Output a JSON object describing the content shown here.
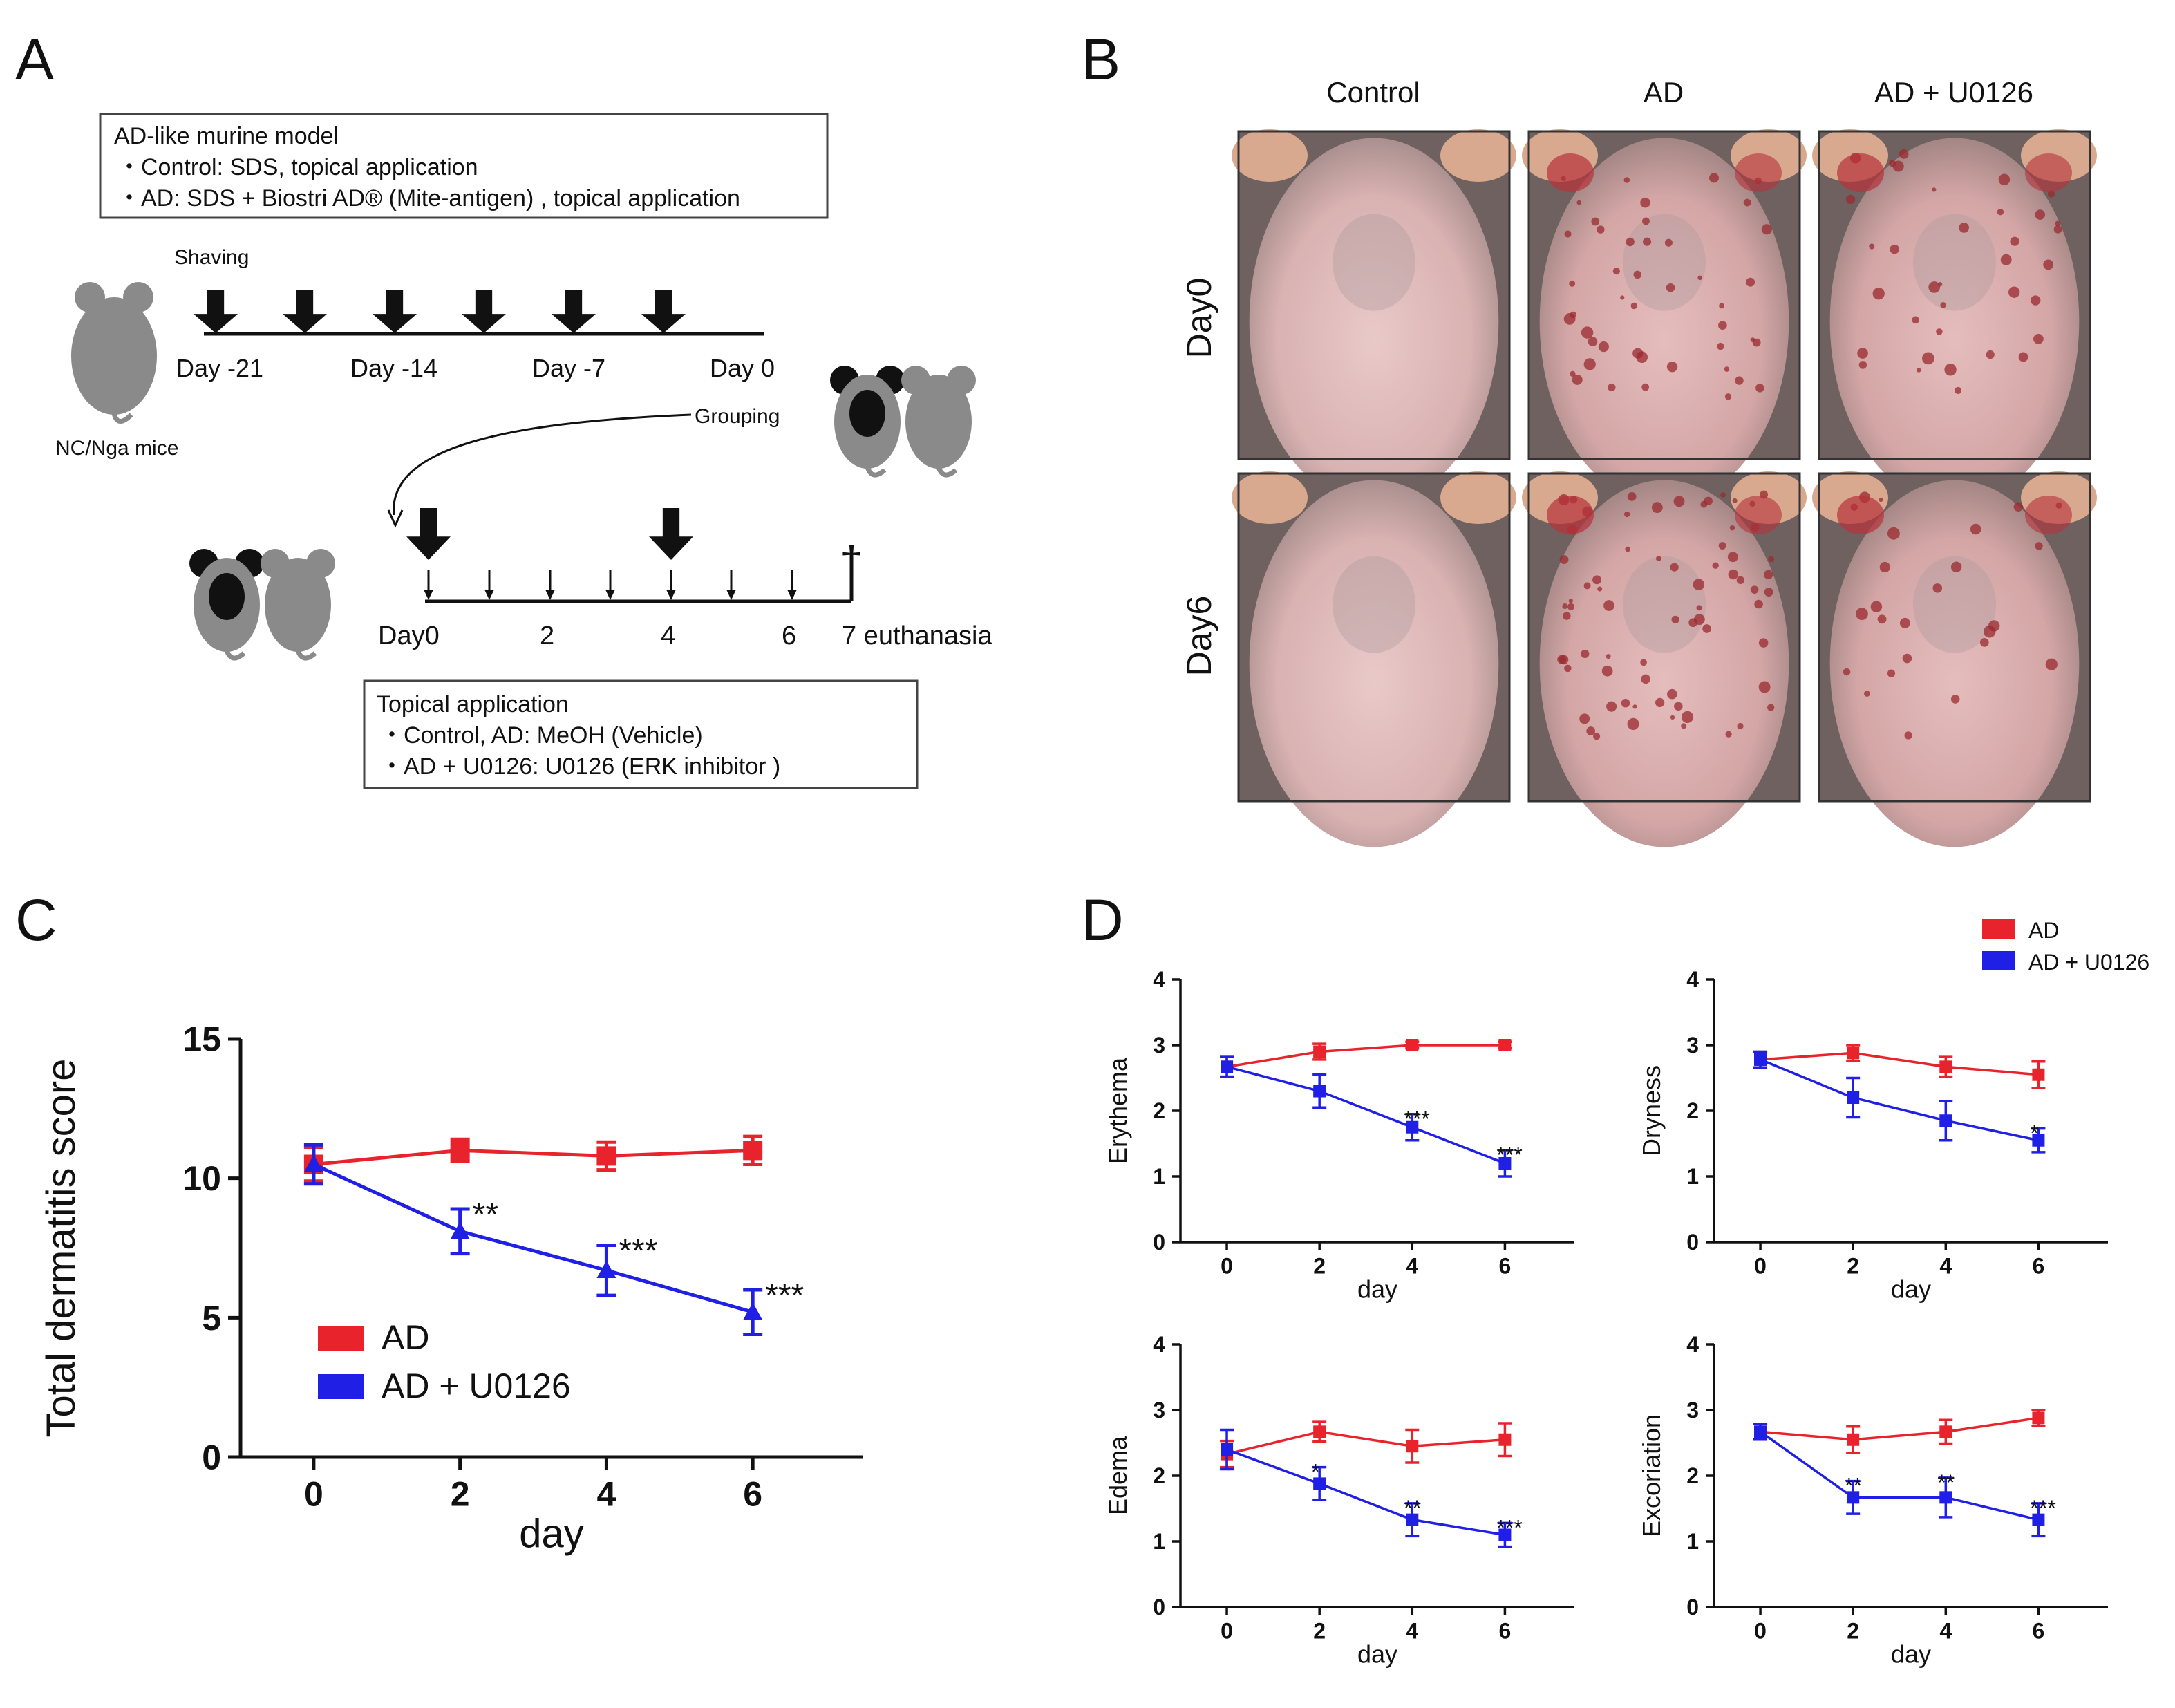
{
  "panels": {
    "A": "A",
    "B": "B",
    "C": "C",
    "D": "D"
  },
  "panelA": {
    "model_box": {
      "title": "AD-like murine model",
      "line1": "・Control: SDS, topical application",
      "line2": "・AD: SDS + Biostri AD® (Mite-antigen) , topical application"
    },
    "shaving_label": "Shaving",
    "timeline1_labels": [
      "Day -21",
      "Day -14",
      "Day -7",
      "Day 0"
    ],
    "mouse_label": "NC/Nga mice",
    "grouping_label": "Grouping",
    "timeline2_labels": [
      "Day0",
      "2",
      "4",
      "6",
      "7 euthanasia"
    ],
    "cross_symbol": "†",
    "application_box": {
      "title": "Topical application",
      "line1": "・Control, AD: MeOH (Vehicle)",
      "line2": "・AD + U0126: U0126 (ERK inhibitor )"
    }
  },
  "panelB": {
    "columns": [
      "Control",
      "AD",
      "AD + U0126"
    ],
    "rows": [
      "Day0",
      "Day6"
    ]
  },
  "colors": {
    "ad": "#e8232b",
    "u0126": "#1f1fe6",
    "axis": "#111111"
  },
  "chart_data": [
    {
      "id": "C",
      "type": "line",
      "title": "",
      "xlabel": "day",
      "ylabel": "Total dermatitis score",
      "x": [
        0,
        2,
        4,
        6
      ],
      "xticks": [
        "0",
        "2",
        "4",
        "6"
      ],
      "yticks": [
        "0",
        "5",
        "10",
        "15"
      ],
      "ylim": [
        0,
        15
      ],
      "legend": {
        "placement": "bottom-left",
        "entries": [
          "AD",
          "AD + U0126"
        ]
      },
      "series": [
        {
          "name": "AD",
          "color": "#e8232b",
          "marker": "square",
          "values": [
            10.5,
            11.0,
            10.8,
            11.0
          ],
          "err": [
            0.6,
            0.4,
            0.5,
            0.5
          ]
        },
        {
          "name": "AD + U0126",
          "color": "#1f1fe6",
          "marker": "triangle",
          "values": [
            10.5,
            8.1,
            6.7,
            5.2
          ],
          "err": [
            0.7,
            0.8,
            0.9,
            0.8
          ]
        }
      ],
      "annotations": [
        {
          "x": 2,
          "text": "**"
        },
        {
          "x": 4,
          "text": "***"
        },
        {
          "x": 6,
          "text": "***"
        }
      ]
    },
    {
      "id": "D-erythema",
      "type": "line",
      "xlabel": "day",
      "ylabel": "Erythema",
      "x": [
        0,
        2,
        4,
        6
      ],
      "xticks": [
        "0",
        "2",
        "4",
        "6"
      ],
      "yticks": [
        "0",
        "1",
        "2",
        "3",
        "4"
      ],
      "ylim": [
        0,
        4
      ],
      "series": [
        {
          "name": "AD",
          "color": "#e8232b",
          "values": [
            2.67,
            2.9,
            3.0,
            3.0
          ],
          "err": [
            0.15,
            0.12,
            0.05,
            0.05
          ]
        },
        {
          "name": "AD + U0126",
          "color": "#1f1fe6",
          "values": [
            2.67,
            2.3,
            1.75,
            1.2
          ],
          "err": [
            0.15,
            0.25,
            0.2,
            0.2
          ]
        }
      ],
      "annotations": [
        {
          "x": 4,
          "text": "***"
        },
        {
          "x": 6,
          "text": "***"
        }
      ]
    },
    {
      "id": "D-dryness",
      "type": "line",
      "xlabel": "day",
      "ylabel": "Dryness",
      "x": [
        0,
        2,
        4,
        6
      ],
      "xticks": [
        "0",
        "2",
        "4",
        "6"
      ],
      "yticks": [
        "0",
        "1",
        "2",
        "3",
        "4"
      ],
      "ylim": [
        0,
        4
      ],
      "series": [
        {
          "name": "AD",
          "color": "#e8232b",
          "values": [
            2.78,
            2.88,
            2.67,
            2.55
          ],
          "err": [
            0.12,
            0.12,
            0.15,
            0.2
          ]
        },
        {
          "name": "AD + U0126",
          "color": "#1f1fe6",
          "values": [
            2.78,
            2.2,
            1.85,
            1.55
          ],
          "err": [
            0.12,
            0.3,
            0.3,
            0.18
          ]
        }
      ],
      "annotations": [
        {
          "x": 6,
          "text": "*"
        }
      ]
    },
    {
      "id": "D-edema",
      "type": "line",
      "xlabel": "day",
      "ylabel": "Edema",
      "x": [
        0,
        2,
        4,
        6
      ],
      "xticks": [
        "0",
        "2",
        "4",
        "6"
      ],
      "yticks": [
        "0",
        "1",
        "2",
        "3",
        "4"
      ],
      "ylim": [
        0,
        4
      ],
      "series": [
        {
          "name": "AD",
          "color": "#e8232b",
          "values": [
            2.33,
            2.67,
            2.45,
            2.55
          ],
          "err": [
            0.2,
            0.15,
            0.25,
            0.25
          ]
        },
        {
          "name": "AD + U0126",
          "color": "#1f1fe6",
          "values": [
            2.4,
            1.88,
            1.33,
            1.1
          ],
          "err": [
            0.3,
            0.25,
            0.25,
            0.18
          ]
        }
      ],
      "annotations": [
        {
          "x": 2,
          "text": "*"
        },
        {
          "x": 4,
          "text": "**"
        },
        {
          "x": 6,
          "text": "***"
        }
      ]
    },
    {
      "id": "D-excoriation",
      "type": "line",
      "xlabel": "day",
      "ylabel": "Excoriation",
      "x": [
        0,
        2,
        4,
        6
      ],
      "xticks": [
        "0",
        "2",
        "4",
        "6"
      ],
      "yticks": [
        "0",
        "1",
        "2",
        "3",
        "4"
      ],
      "ylim": [
        0,
        4
      ],
      "series": [
        {
          "name": "AD",
          "color": "#e8232b",
          "values": [
            2.67,
            2.55,
            2.67,
            2.88
          ],
          "err": [
            0.12,
            0.2,
            0.18,
            0.12
          ]
        },
        {
          "name": "AD + U0126",
          "color": "#1f1fe6",
          "values": [
            2.67,
            1.67,
            1.67,
            1.33
          ],
          "err": [
            0.12,
            0.25,
            0.3,
            0.25
          ]
        }
      ],
      "annotations": [
        {
          "x": 2,
          "text": "**"
        },
        {
          "x": 4,
          "text": "**"
        },
        {
          "x": 6,
          "text": "***"
        }
      ]
    }
  ],
  "panelD_legend": [
    "AD",
    "AD + U0126"
  ]
}
